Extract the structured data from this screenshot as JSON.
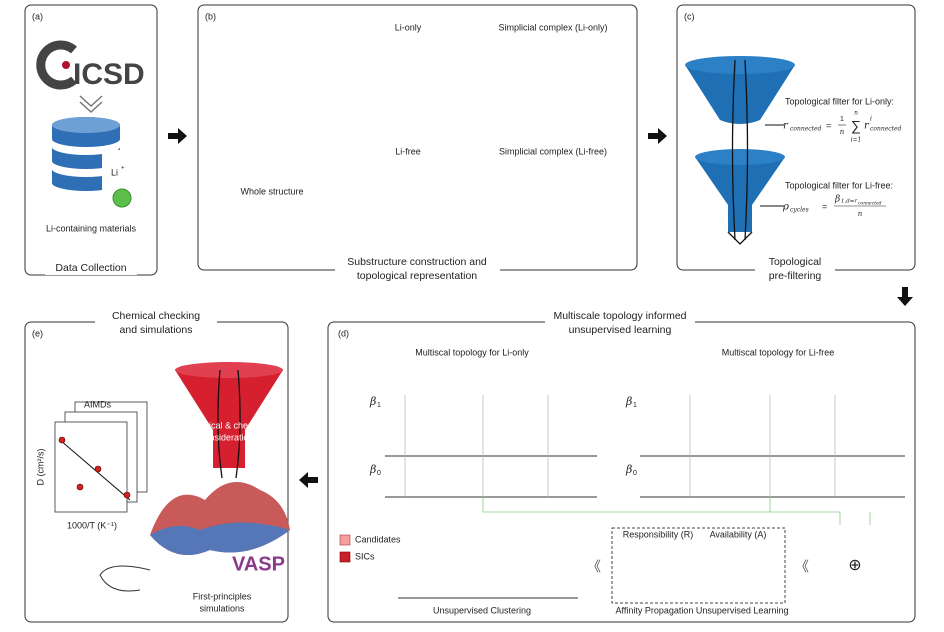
{
  "panel_a": {
    "label": "(a)",
    "logo": "ICSD",
    "ion": "Li",
    "ion_charge": "+",
    "caption": "Li-containing materials",
    "title": "Data Collection"
  },
  "panel_b": {
    "label": "(b)",
    "li_only": "Li-only",
    "complex_li_only": "Simplicial complex (Li-only)",
    "whole": "Whole structure",
    "li_free": "Li-free",
    "complex_li_free": "Simplicial complex (Li-free)",
    "title_lines": [
      "Substructure construction and",
      "topological representation"
    ]
  },
  "panel_c": {
    "label": "(c)",
    "filter_li_only": "Topological filter for Li-only:",
    "formula_li_only": {
      "lhs": "r",
      "lhs_sub": "connected",
      "eq": "=",
      "frac_num": "1",
      "frac_den": "n",
      "sum": "∑",
      "sum_top": "n",
      "sum_bottom": "i=1",
      "term": "r",
      "term_sup": "i",
      "term_sub": "connected"
    },
    "filter_li_free": "Topological filter for Li-free:",
    "formula_li_free": {
      "lhs": "ρ",
      "lhs_sub": "cycles",
      "eq": "=",
      "num": "β",
      "num_sub": "1,d=r",
      "num_subsub": "connected",
      "den": "n"
    },
    "title_lines": [
      "Topological",
      "pre-filtering"
    ]
  },
  "panel_d": {
    "label": "(d)",
    "title_lines": [
      "Multiscale topology informed",
      "unsupervised learning"
    ],
    "left_title": "Multiscal topology for Li-only",
    "right_title": "Multiscal topology for Li-free",
    "beta": "β",
    "beta1_sub": "1",
    "beta0_sub": "0",
    "legend": [
      "Candidates",
      "SICs"
    ],
    "clustering": "Unsupervised Clustering",
    "responsibility": "Responsibility (R)",
    "availability": "Availability (A)",
    "affinity": "Affinity Propagation Unsupervised Learning"
  },
  "panel_e": {
    "label": "(e)",
    "title_lines": [
      "Chemical checking",
      "and simulations"
    ],
    "aimds": "AIMDs",
    "y_label": "D (cm²/s)",
    "x_label": "1000/T (K⁻¹)",
    "funnel_lines": [
      "Physical & chemical",
      "considerations"
    ],
    "vasp": "VASP",
    "simulation_lines": [
      "First-principles",
      "simulations"
    ]
  }
}
